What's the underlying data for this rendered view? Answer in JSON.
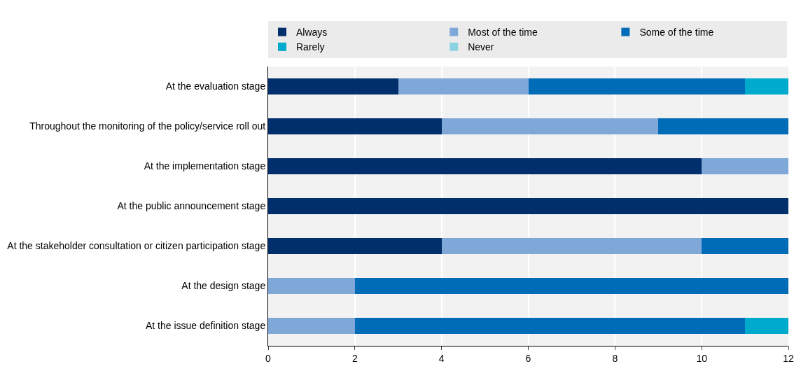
{
  "chart_data": {
    "type": "bar",
    "orientation": "horizontal",
    "stacked": true,
    "categories": [
      "At the evaluation stage",
      "Throughout the monitoring of the policy/service roll out",
      "At the implementation stage",
      "At the public announcement stage",
      "At the stakeholder consultation or citizen participation stage",
      "At the design stage",
      "At the issue definition stage"
    ],
    "series": [
      {
        "name": "Always",
        "color": "#002f6c",
        "values": [
          3,
          4,
          10,
          12,
          4,
          0,
          0
        ]
      },
      {
        "name": "Most of the time",
        "color": "#7fa8d9",
        "values": [
          3,
          5,
          2,
          0,
          6,
          2,
          2
        ]
      },
      {
        "name": "Some of the time",
        "color": "#006bb6",
        "values": [
          5,
          3,
          0,
          0,
          2,
          10,
          9
        ]
      },
      {
        "name": "Rarely",
        "color": "#00aacc",
        "values": [
          1,
          0,
          0,
          0,
          0,
          0,
          1
        ]
      },
      {
        "name": "Never",
        "color": "#8cd3e2",
        "values": [
          0,
          0,
          0,
          0,
          0,
          0,
          0
        ]
      }
    ],
    "xlim": [
      0,
      12
    ],
    "xticks": [
      0,
      2,
      4,
      6,
      8,
      10,
      12
    ],
    "grid": "x",
    "legend": "top"
  }
}
